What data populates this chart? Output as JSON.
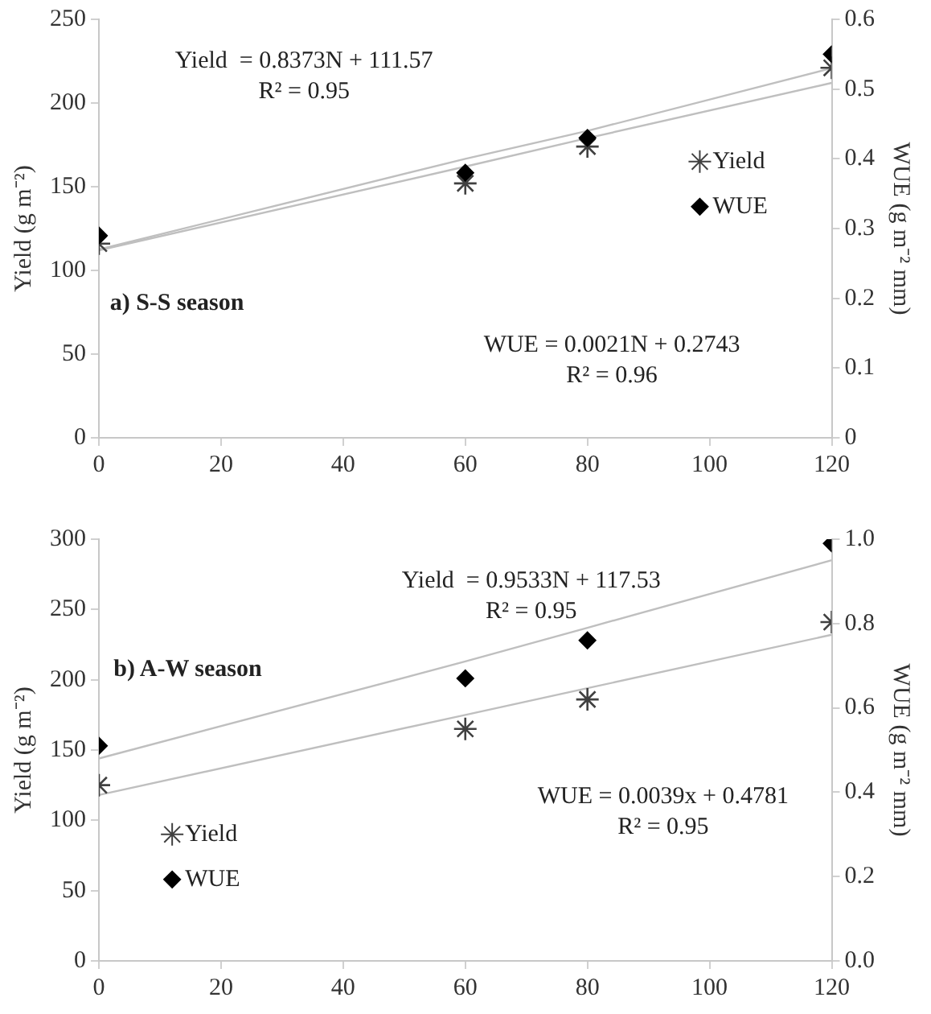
{
  "chart_data": [
    {
      "type": "scatter",
      "title": "a) S-S season",
      "ylabel": "Yield (g m⁻²)",
      "y2label": "WUE (g m⁻² mm)",
      "annotations": [
        "Yield  = 0.8373N + 111.57\nR² = 0.95",
        "WUE = 0.0021N + 0.2743\nR² = 0.96"
      ],
      "x": [
        0,
        60,
        80,
        120
      ],
      "xlim": [
        0,
        120
      ],
      "xticks": [
        0,
        20,
        40,
        60,
        80,
        100,
        120
      ],
      "ylim": [
        0,
        250
      ],
      "yticks": [
        0,
        50,
        100,
        150,
        200,
        250
      ],
      "y2lim": [
        0,
        0.6
      ],
      "y2ticks": [
        0,
        0.1,
        0.2,
        0.3,
        0.4,
        0.5,
        0.6
      ],
      "series": [
        {
          "name": "Yield",
          "color": "#404040",
          "marker": "cross",
          "values": [
            116,
            152,
            174,
            221
          ]
        },
        {
          "name": "WUE",
          "color": "#000000",
          "marker": "diamond",
          "axis": "y2",
          "values": [
            0.29,
            0.38,
            0.43,
            0.55
          ]
        },
        {
          "type": "line",
          "color": "#bfbfbf",
          "marker": "none",
          "values": [
            112,
            162,
            179,
            212
          ]
        },
        {
          "type": "line",
          "color": "#bfbfbf",
          "marker": "none",
          "axis": "y2",
          "values": [
            0.27,
            0.4,
            0.44,
            0.53
          ]
        }
      ],
      "grid": false,
      "legend": "right"
    },
    {
      "type": "scatter",
      "title": "b) A-W season",
      "ylabel": "Yield (g m⁻²)",
      "y2label": "WUE (g m⁻² mm)",
      "annotations": [
        "Yield  = 0.9533N + 117.53\nR² = 0.95",
        "WUE = 0.0039x + 0.4781\nR² = 0.95"
      ],
      "x": [
        0,
        60,
        80,
        120
      ],
      "xlim": [
        0,
        120
      ],
      "xticks": [
        0,
        20,
        40,
        60,
        80,
        100,
        120
      ],
      "ylim": [
        0,
        300
      ],
      "yticks": [
        0,
        50,
        100,
        150,
        200,
        250,
        300
      ],
      "y2lim": [
        0,
        1
      ],
      "y2ticks": [
        {
          "value": 0,
          "label": "0.0"
        },
        {
          "value": 0.2,
          "label": "0.2"
        },
        {
          "value": 0.4,
          "label": "0.4"
        },
        {
          "value": 0.6,
          "label": "0.6"
        },
        {
          "value": 0.8,
          "label": "0.8"
        },
        {
          "value": 1,
          "label": "1.0"
        }
      ],
      "series": [
        {
          "name": "Yield",
          "color": "#404040",
          "marker": "cross",
          "values": [
            125,
            165,
            186,
            241
          ]
        },
        {
          "name": "WUE",
          "color": "#000000",
          "marker": "diamond",
          "axis": "y2",
          "values": [
            0.51,
            0.67,
            0.76,
            0.99
          ]
        },
        {
          "type": "line",
          "color": "#bfbfbf",
          "marker": "none",
          "values": [
            118,
            175,
            194,
            232
          ]
        },
        {
          "type": "line",
          "color": "#bfbfbf",
          "marker": "none",
          "axis": "y2",
          "values": [
            0.48,
            0.71,
            0.79,
            0.95
          ]
        }
      ],
      "grid": false,
      "legend": "bottom left"
    }
  ]
}
